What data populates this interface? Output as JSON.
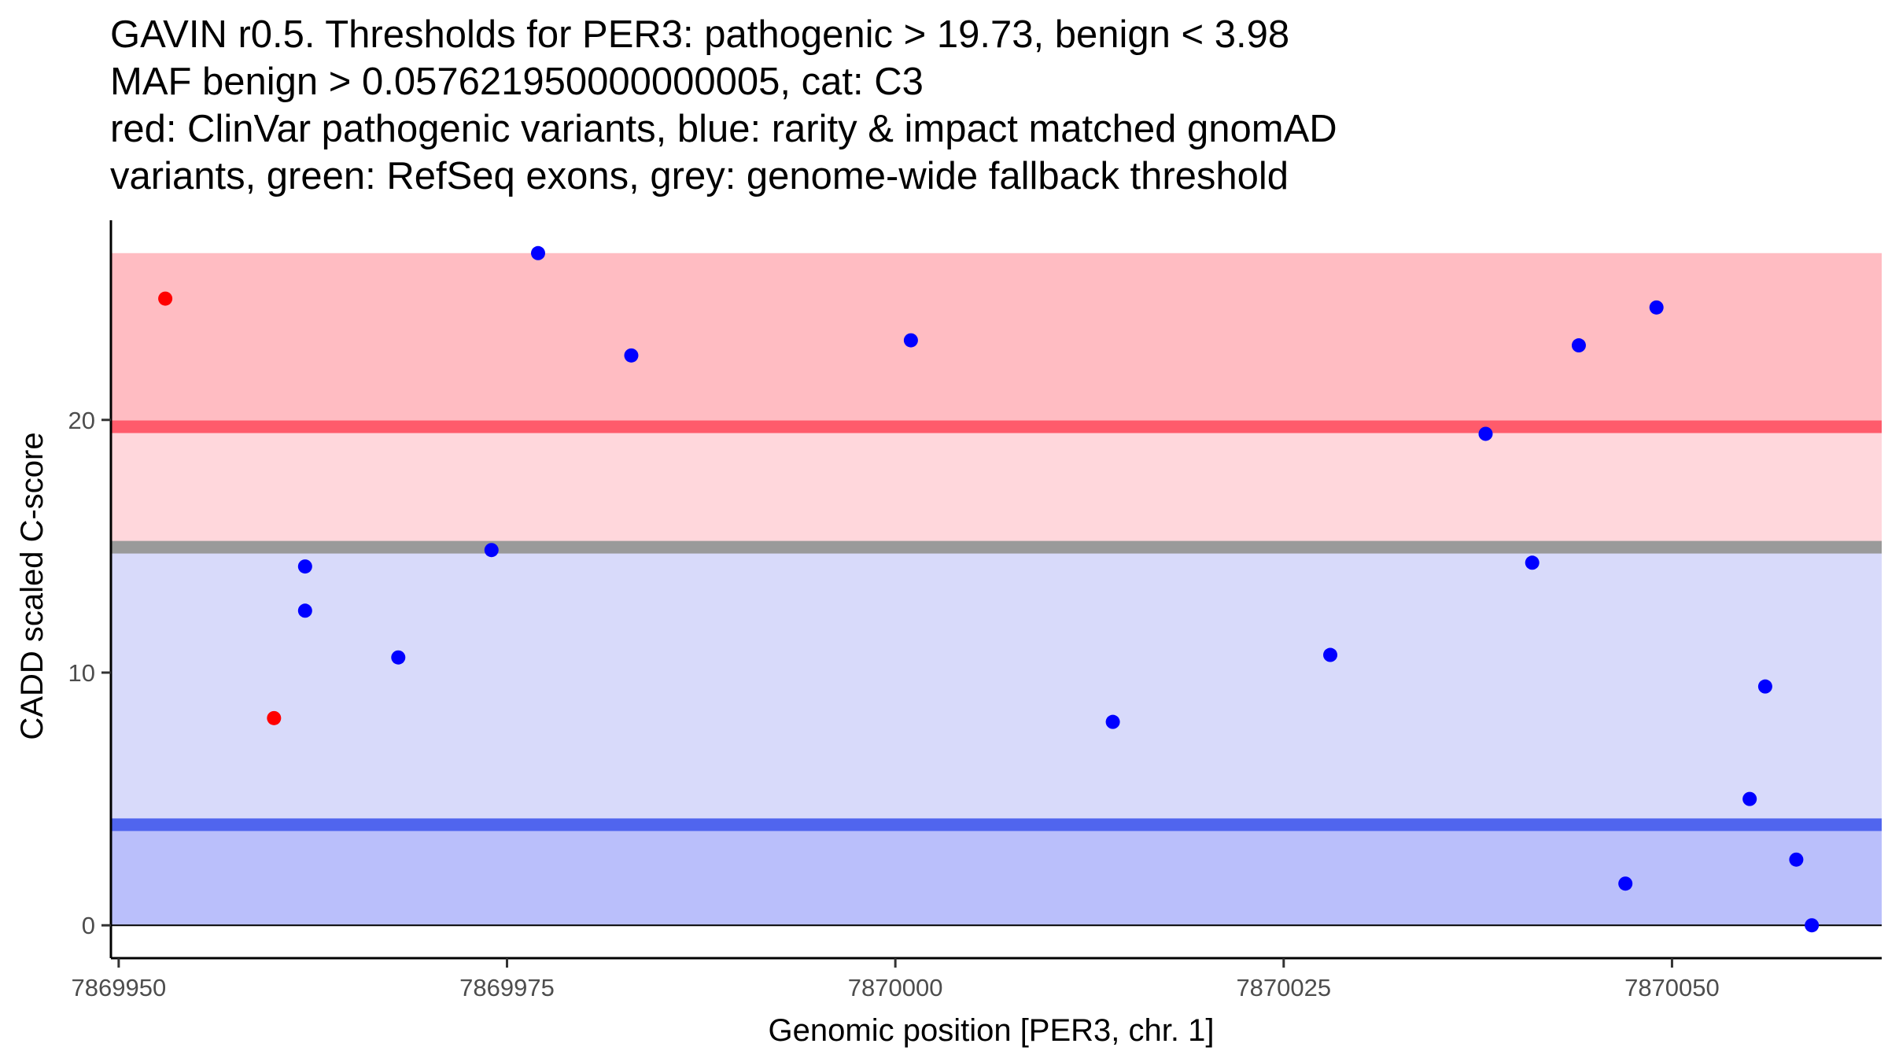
{
  "chart_data": {
    "type": "scatter",
    "title_lines": [
      "GAVIN r0.5. Thresholds for PER3: pathogenic > 19.73, benign < 3.98",
      "MAF benign > 0.057621950000000005, cat: C3",
      "red: ClinVar pathogenic variants, blue: rarity & impact matched gnomAD",
      "variants, green: RefSeq exons, grey: genome-wide fallback threshold"
    ],
    "xlabel": "Genomic position [PER3, chr. 1]",
    "ylabel": "CADD scaled C-score",
    "xlim": [
      7869949.5,
      7870063.5
    ],
    "ylim": [
      -1.3,
      27.9
    ],
    "x_ticks": [
      {
        "value": 7869950,
        "label": "7869950"
      },
      {
        "value": 7869975,
        "label": "7869975"
      },
      {
        "value": 7870000,
        "label": "7870000"
      },
      {
        "value": 7870025,
        "label": "7870025"
      },
      {
        "value": 7870050,
        "label": "7870050"
      }
    ],
    "y_ticks": [
      {
        "value": 0,
        "label": "0"
      },
      {
        "value": 10,
        "label": "10"
      },
      {
        "value": 20,
        "label": "20"
      }
    ],
    "bands": [
      {
        "name": "pathogenic-region",
        "y0": 19.73,
        "y1": 26.6,
        "color": "#ffbcc2"
      },
      {
        "name": "pathogenic-to-fallback-region",
        "y0": 14.96,
        "y1": 19.73,
        "color": "#ffd7dc"
      },
      {
        "name": "fallback-to-benign-region",
        "y0": 3.98,
        "y1": 14.96,
        "color": "#d8dafa"
      },
      {
        "name": "benign-region",
        "y0": 0,
        "y1": 3.98,
        "color": "#babffb"
      }
    ],
    "threshold_lines": [
      {
        "name": "pathogenic-threshold",
        "y": 19.73,
        "color": "#ff5b6b"
      },
      {
        "name": "fallback-threshold",
        "y": 14.96,
        "color": "#9a9a9a"
      },
      {
        "name": "benign-threshold",
        "y": 3.98,
        "color": "#5065ee"
      }
    ],
    "series": [
      {
        "name": "ClinVar pathogenic variants",
        "color": "#ff0000",
        "points": [
          {
            "x": 7869953,
            "y": 24.8
          },
          {
            "x": 7869960,
            "y": 8.2
          }
        ]
      },
      {
        "name": "rarity & impact matched gnomAD variants",
        "color": "#0000ff",
        "points": [
          {
            "x": 7869962,
            "y": 14.2
          },
          {
            "x": 7869962,
            "y": 12.45
          },
          {
            "x": 7869968,
            "y": 10.6
          },
          {
            "x": 7869974,
            "y": 14.85
          },
          {
            "x": 7869977,
            "y": 26.6
          },
          {
            "x": 7869983,
            "y": 22.55
          },
          {
            "x": 7870001,
            "y": 23.15
          },
          {
            "x": 7870014,
            "y": 8.05
          },
          {
            "x": 7870028,
            "y": 10.7
          },
          {
            "x": 7870038,
            "y": 19.45
          },
          {
            "x": 7870041,
            "y": 14.35
          },
          {
            "x": 7870044,
            "y": 22.95
          },
          {
            "x": 7870047,
            "y": 1.65
          },
          {
            "x": 7870049,
            "y": 24.45
          },
          {
            "x": 7870055,
            "y": 5.0
          },
          {
            "x": 7870056,
            "y": 9.45
          },
          {
            "x": 7870058,
            "y": 2.6
          },
          {
            "x": 7870059,
            "y": 0.0
          }
        ]
      }
    ]
  }
}
